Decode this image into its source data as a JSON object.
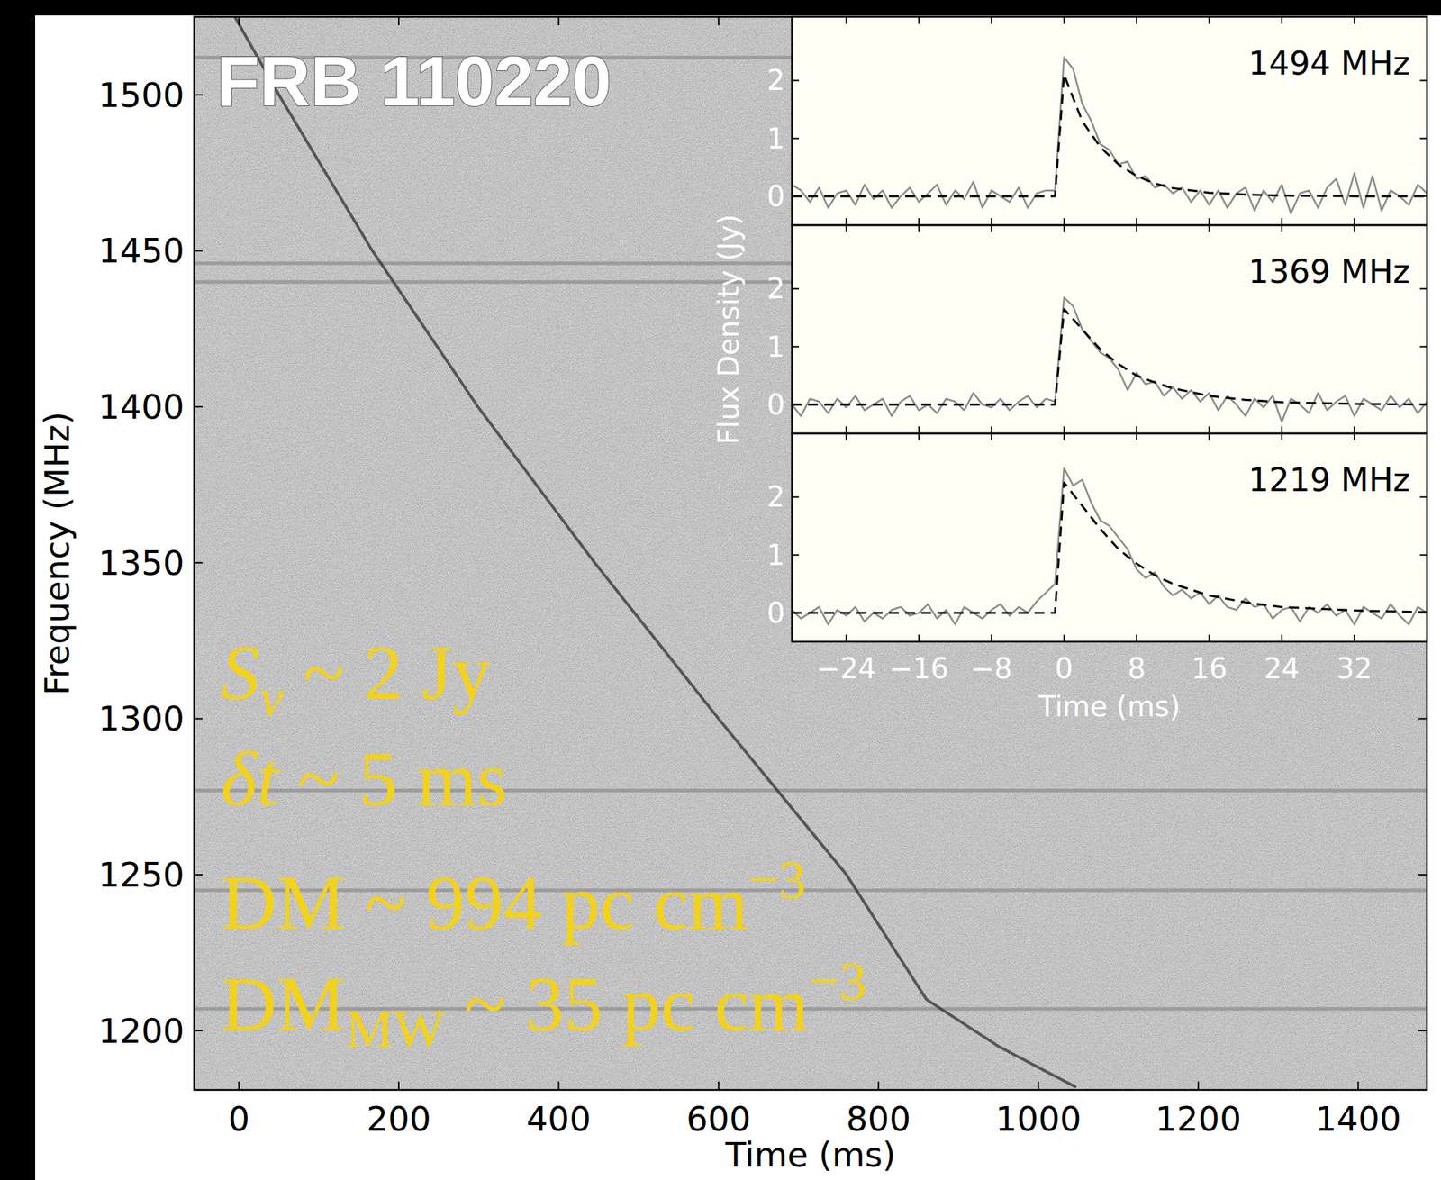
{
  "chart_data": [
    {
      "type": "line",
      "title": "FRB 110220",
      "x_label": "Time (ms)",
      "y_label": "Frequency (MHz)",
      "x": [
        -5,
        50,
        167,
        299,
        445,
        600,
        760,
        860,
        950,
        1046
      ],
      "series": [
        {
          "values": [
            1525,
            1500,
            1450,
            1400,
            1350,
            1300,
            1250,
            1210,
            1195,
            1182
          ],
          "color": "#262626",
          "line_style": "solid"
        }
      ],
      "masked_channels": [
        1512,
        1446,
        1440,
        1277,
        1245,
        1207
      ],
      "xlim": [
        -56,
        1486
      ],
      "ylim": [
        1181,
        1525
      ],
      "xticks": [
        0,
        200,
        400,
        600,
        800,
        1000,
        1200,
        1400
      ],
      "yticks": [
        1200,
        1250,
        1300,
        1350,
        1400,
        1450,
        1500
      ],
      "annotations": [
        [
          {
            "text": "S",
            "style": "italic"
          },
          {
            "text": "ν",
            "style": "sub-italic"
          },
          {
            "text": " ~ 2 Jy",
            "style": "normal"
          }
        ],
        [
          {
            "text": "δt",
            "style": "italic"
          },
          {
            "text": " ~ 5 ms",
            "style": "normal"
          }
        ],
        [
          {
            "text": "DM ~ 994 pc cm",
            "style": "normal"
          },
          {
            "text": "−3",
            "style": "sup"
          }
        ],
        [
          {
            "text": "DM",
            "style": "normal"
          },
          {
            "text": "MW",
            "style": "sub"
          },
          {
            "text": " ~ 35 pc cm",
            "style": "normal"
          },
          {
            "text": "−3",
            "style": "sup"
          }
        ]
      ]
    },
    {
      "type": "line",
      "x_label": "Time (ms)",
      "y_label": "Flux Density (Jy)",
      "xlim": [
        -30,
        40
      ],
      "ylim": [
        -0.5,
        3.1
      ],
      "xticks": [
        {
          "value": -24,
          "label": "−24"
        },
        {
          "value": -16,
          "label": "−16"
        },
        {
          "value": -8,
          "label": "−8"
        },
        0,
        8,
        16,
        24,
        32
      ],
      "yticks": [
        0,
        1,
        2
      ],
      "panels": [
        {
          "title": "1494 MHz",
          "series": [
            {
              "color": "#8c8c8c",
              "line_style": "solid",
              "x": [
                -30,
                -29,
                -28,
                -27,
                -26,
                -25,
                -24,
                -23,
                -22,
                -21,
                -20,
                -19,
                -18,
                -17,
                -16,
                -15,
                -14,
                -13,
                -12,
                -11,
                -10,
                -9,
                -8,
                -7,
                -6,
                -5,
                -4,
                -3,
                -2,
                -1,
                0,
                1,
                2,
                3,
                4,
                5,
                6,
                7,
                8,
                9,
                10,
                11,
                12,
                13,
                14,
                15,
                16,
                17,
                18,
                19,
                20,
                21,
                22,
                23,
                24,
                25,
                26,
                27,
                28,
                29,
                30,
                31,
                32,
                33,
                34,
                35,
                36,
                37,
                38,
                39,
                40
              ],
              "values": [
                0.2,
                0.1,
                -0.1,
                0.15,
                -0.2,
                0.05,
                0.1,
                -0.15,
                0.2,
                -0.05,
                0.1,
                -0.2,
                0.0,
                0.15,
                -0.1,
                0.05,
                0.2,
                -0.15,
                0.1,
                -0.05,
                0.25,
                -0.2,
                0.1,
                0.0,
                -0.1,
                0.15,
                -0.2,
                0.05,
                0.1,
                0.1,
                2.4,
                2.2,
                1.6,
                1.3,
                0.9,
                0.8,
                0.55,
                0.6,
                0.3,
                0.35,
                0.15,
                0.2,
                0.05,
                0.15,
                -0.1,
                0.1,
                -0.15,
                0.1,
                -0.2,
                0.05,
                0.15,
                -0.25,
                0.1,
                -0.1,
                0.2,
                -0.3,
                0.05,
                0.1,
                -0.2,
                0.15,
                0.3,
                -0.15,
                0.4,
                -0.2,
                0.35,
                -0.25,
                0.1,
                0.0,
                -0.15,
                0.2,
                0.05
              ]
            },
            {
              "color": "#000000",
              "line_style": "dashed",
              "x": [
                -30,
                -1,
                0,
                2,
                4,
                6,
                8,
                10,
                12,
                16,
                20,
                24,
                32,
                40
              ],
              "values": [
                0,
                0,
                2.1,
                1.3,
                0.85,
                0.55,
                0.35,
                0.22,
                0.14,
                0.06,
                0.03,
                0.01,
                0,
                0
              ]
            }
          ]
        },
        {
          "title": "1369 MHz",
          "series": [
            {
              "color": "#8c8c8c",
              "line_style": "solid",
              "x": [
                -30,
                -29,
                -28,
                -27,
                -26,
                -25,
                -24,
                -23,
                -22,
                -21,
                -20,
                -19,
                -18,
                -17,
                -16,
                -15,
                -14,
                -13,
                -12,
                -11,
                -10,
                -9,
                -8,
                -7,
                -6,
                -5,
                -4,
                -3,
                -2,
                -1,
                0,
                1,
                2,
                3,
                4,
                5,
                6,
                7,
                8,
                9,
                10,
                11,
                12,
                13,
                14,
                15,
                16,
                17,
                18,
                19,
                20,
                21,
                22,
                23,
                24,
                25,
                26,
                27,
                28,
                29,
                30,
                31,
                32,
                33,
                34,
                35,
                36,
                37,
                38,
                39,
                40
              ],
              "values": [
                0.0,
                -0.2,
                0.1,
                0.05,
                -0.15,
                0.1,
                -0.05,
                0.15,
                -0.1,
                0.0,
                0.1,
                -0.2,
                0.05,
                0.15,
                -0.1,
                0.0,
                -0.15,
                0.1,
                0.05,
                -0.1,
                0.2,
                0.0,
                -0.05,
                0.1,
                -0.1,
                0.05,
                0.15,
                -0.05,
                0.1,
                0.05,
                1.85,
                1.7,
                1.3,
                1.1,
                0.9,
                0.8,
                0.6,
                0.25,
                0.55,
                0.35,
                0.4,
                0.15,
                0.3,
                0.1,
                0.25,
                0.05,
                0.2,
                -0.1,
                0.15,
                0.0,
                -0.2,
                0.1,
                -0.05,
                0.15,
                -0.3,
                0.1,
                0.0,
                -0.15,
                0.2,
                -0.1,
                0.05,
                0.15,
                -0.2,
                0.1,
                0.0,
                -0.1,
                0.15,
                -0.05,
                0.1,
                -0.15,
                0.05
              ]
            },
            {
              "color": "#000000",
              "line_style": "dashed",
              "x": [
                -30,
                -1,
                0,
                2,
                4,
                6,
                8,
                10,
                12,
                16,
                20,
                24,
                32,
                40
              ],
              "values": [
                0,
                0,
                1.65,
                1.3,
                0.95,
                0.7,
                0.5,
                0.38,
                0.28,
                0.15,
                0.08,
                0.04,
                0.01,
                0
              ]
            }
          ]
        },
        {
          "title": "1219 MHz",
          "series": [
            {
              "color": "#8c8c8c",
              "line_style": "solid",
              "x": [
                -30,
                -29,
                -28,
                -27,
                -26,
                -25,
                -24,
                -23,
                -22,
                -21,
                -20,
                -19,
                -18,
                -17,
                -16,
                -15,
                -14,
                -13,
                -12,
                -11,
                -10,
                -9,
                -8,
                -7,
                -6,
                -5,
                -4,
                -3,
                -2,
                -1,
                0,
                1,
                2,
                3,
                4,
                5,
                6,
                7,
                8,
                9,
                10,
                11,
                12,
                13,
                14,
                15,
                16,
                17,
                18,
                19,
                20,
                21,
                22,
                23,
                24,
                25,
                26,
                27,
                28,
                29,
                30,
                31,
                32,
                33,
                34,
                35,
                36,
                37,
                38,
                39,
                40
              ],
              "values": [
                0.05,
                -0.1,
                0.0,
                0.1,
                -0.2,
                0.05,
                -0.05,
                0.1,
                -0.15,
                0.0,
                -0.1,
                0.05,
                0.1,
                -0.05,
                0.0,
                0.15,
                -0.1,
                0.05,
                -0.2,
                0.1,
                0.0,
                -0.1,
                0.05,
                0.15,
                -0.05,
                0.1,
                0.0,
                0.2,
                0.35,
                0.5,
                2.5,
                2.2,
                2.3,
                1.9,
                1.6,
                1.5,
                1.3,
                1.1,
                0.75,
                0.6,
                0.7,
                0.45,
                0.3,
                0.4,
                0.25,
                0.35,
                0.15,
                0.3,
                0.1,
                0.05,
                0.25,
                0.1,
                0.15,
                -0.1,
                0.05,
                0.1,
                -0.15,
                0.1,
                0.0,
                0.15,
                -0.05,
                0.05,
                -0.2,
                0.1,
                0.0,
                -0.1,
                0.15,
                -0.05,
                -0.2,
                0.1,
                0.0
              ]
            },
            {
              "color": "#000000",
              "line_style": "dashed",
              "x": [
                -30,
                -1,
                0,
                2,
                4,
                6,
                8,
                10,
                12,
                16,
                20,
                24,
                32,
                40
              ],
              "values": [
                0,
                0,
                2.25,
                1.85,
                1.45,
                1.1,
                0.85,
                0.65,
                0.5,
                0.3,
                0.18,
                0.1,
                0.04,
                0.01
              ]
            }
          ]
        }
      ]
    }
  ]
}
